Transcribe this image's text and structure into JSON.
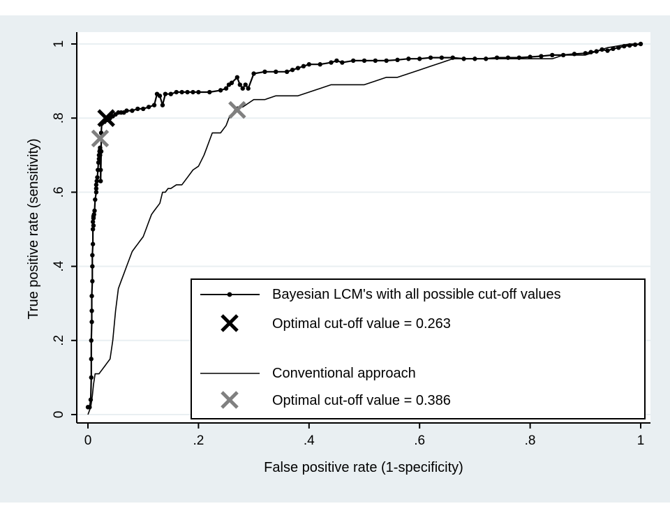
{
  "chart_data": {
    "type": "line",
    "xlabel": "False positive rate (1-specificity)",
    "ylabel": "True positive rate (sensitivity)",
    "xlim": [
      0,
      1
    ],
    "ylim": [
      0,
      1
    ],
    "xticks": [
      {
        "value": 0,
        "label": "0"
      },
      {
        "value": 0.2,
        "label": ".2"
      },
      {
        "value": 0.4,
        "label": ".4"
      },
      {
        "value": 0.6,
        "label": ".6"
      },
      {
        "value": 0.8,
        "label": ".8"
      },
      {
        "value": 1,
        "label": "1"
      }
    ],
    "yticks": [
      {
        "value": 0,
        "label": "0"
      },
      {
        "value": 0.2,
        "label": ".2"
      },
      {
        "value": 0.4,
        "label": ".4"
      },
      {
        "value": 0.6,
        "label": ".6"
      },
      {
        "value": 0.8,
        "label": ".8"
      },
      {
        "value": 1,
        "label": "1"
      }
    ],
    "grid": true,
    "legend_position": "bottom-right",
    "colors": {
      "background": "#e9eff2",
      "plot": "#ffffff",
      "grid": "#e9eff2",
      "bayesian": "#000000",
      "conventional": "#000000",
      "optimal_bayesian": "#000000",
      "optimal_conventional": "#808080"
    },
    "series": [
      {
        "name": "Bayesian LCM's with all possible cut-off values",
        "style": "line-with-dots",
        "x": [
          0.0,
          0.003,
          0.005,
          0.006,
          0.006,
          0.006,
          0.007,
          0.007,
          0.007,
          0.008,
          0.008,
          0.008,
          0.009,
          0.009,
          0.009,
          0.01,
          0.01,
          0.01,
          0.011,
          0.012,
          0.013,
          0.015,
          0.015,
          0.015,
          0.016,
          0.017,
          0.018,
          0.019,
          0.02,
          0.02,
          0.021,
          0.022,
          0.022,
          0.022,
          0.023,
          0.023,
          0.024,
          0.024,
          0.025,
          0.03,
          0.035,
          0.04,
          0.045,
          0.05,
          0.055,
          0.06,
          0.065,
          0.07,
          0.08,
          0.09,
          0.1,
          0.11,
          0.12,
          0.125,
          0.13,
          0.135,
          0.14,
          0.15,
          0.16,
          0.17,
          0.18,
          0.19,
          0.2,
          0.22,
          0.24,
          0.25,
          0.255,
          0.26,
          0.27,
          0.275,
          0.28,
          0.285,
          0.29,
          0.3,
          0.32,
          0.34,
          0.36,
          0.37,
          0.38,
          0.39,
          0.4,
          0.42,
          0.44,
          0.45,
          0.46,
          0.48,
          0.5,
          0.52,
          0.54,
          0.56,
          0.58,
          0.6,
          0.62,
          0.64,
          0.66,
          0.68,
          0.7,
          0.72,
          0.74,
          0.76,
          0.78,
          0.8,
          0.82,
          0.84,
          0.86,
          0.88,
          0.9,
          0.91,
          0.92,
          0.93,
          0.94,
          0.95,
          0.96,
          0.97,
          0.98,
          0.99,
          1.0
        ],
        "y": [
          0.02,
          0.02,
          0.04,
          0.1,
          0.15,
          0.2,
          0.25,
          0.28,
          0.32,
          0.36,
          0.4,
          0.43,
          0.46,
          0.5,
          0.52,
          0.53,
          0.51,
          0.535,
          0.54,
          0.55,
          0.58,
          0.6,
          0.61,
          0.62,
          0.63,
          0.64,
          0.66,
          0.68,
          0.69,
          0.7,
          0.71,
          0.715,
          0.72,
          0.7,
          0.66,
          0.63,
          0.71,
          0.76,
          0.785,
          0.79,
          0.795,
          0.8,
          0.805,
          0.81,
          0.815,
          0.815,
          0.815,
          0.82,
          0.82,
          0.825,
          0.825,
          0.83,
          0.835,
          0.865,
          0.86,
          0.835,
          0.865,
          0.865,
          0.87,
          0.87,
          0.87,
          0.87,
          0.87,
          0.87,
          0.875,
          0.88,
          0.89,
          0.895,
          0.91,
          0.89,
          0.88,
          0.89,
          0.88,
          0.92,
          0.925,
          0.925,
          0.925,
          0.93,
          0.935,
          0.94,
          0.945,
          0.945,
          0.95,
          0.955,
          0.95,
          0.955,
          0.955,
          0.955,
          0.955,
          0.957,
          0.96,
          0.96,
          0.963,
          0.963,
          0.963,
          0.96,
          0.96,
          0.96,
          0.963,
          0.963,
          0.963,
          0.965,
          0.967,
          0.97,
          0.97,
          0.973,
          0.975,
          0.978,
          0.98,
          0.985,
          0.982,
          0.987,
          0.99,
          0.994,
          0.996,
          0.998,
          1.0
        ]
      },
      {
        "name": "Conventional approach",
        "style": "line",
        "x": [
          0.0,
          0.005,
          0.008,
          0.01,
          0.013,
          0.02,
          0.025,
          0.03,
          0.035,
          0.04,
          0.045,
          0.05,
          0.055,
          0.06,
          0.065,
          0.07,
          0.075,
          0.08,
          0.085,
          0.09,
          0.095,
          0.1,
          0.105,
          0.11,
          0.115,
          0.12,
          0.13,
          0.135,
          0.14,
          0.145,
          0.15,
          0.16,
          0.17,
          0.18,
          0.19,
          0.2,
          0.21,
          0.215,
          0.22,
          0.225,
          0.23,
          0.24,
          0.25,
          0.255,
          0.26,
          0.265,
          0.27,
          0.28,
          0.29,
          0.3,
          0.32,
          0.34,
          0.36,
          0.38,
          0.4,
          0.42,
          0.44,
          0.46,
          0.48,
          0.5,
          0.52,
          0.54,
          0.56,
          0.58,
          0.6,
          0.62,
          0.64,
          0.66,
          0.68,
          0.7,
          0.72,
          0.74,
          0.76,
          0.78,
          0.8,
          0.82,
          0.84,
          0.86,
          0.88,
          0.9,
          0.92,
          0.94,
          0.96,
          0.98,
          1.0
        ],
        "y": [
          0.0,
          0.02,
          0.05,
          0.08,
          0.11,
          0.11,
          0.12,
          0.13,
          0.14,
          0.15,
          0.2,
          0.28,
          0.34,
          0.36,
          0.38,
          0.4,
          0.42,
          0.44,
          0.45,
          0.46,
          0.47,
          0.48,
          0.5,
          0.52,
          0.54,
          0.55,
          0.57,
          0.6,
          0.6,
          0.61,
          0.61,
          0.62,
          0.62,
          0.64,
          0.66,
          0.67,
          0.7,
          0.72,
          0.74,
          0.76,
          0.76,
          0.76,
          0.78,
          0.8,
          0.81,
          0.82,
          0.83,
          0.83,
          0.84,
          0.85,
          0.85,
          0.86,
          0.86,
          0.86,
          0.87,
          0.88,
          0.89,
          0.89,
          0.89,
          0.89,
          0.9,
          0.91,
          0.91,
          0.92,
          0.93,
          0.94,
          0.95,
          0.96,
          0.96,
          0.96,
          0.96,
          0.96,
          0.96,
          0.96,
          0.96,
          0.96,
          0.96,
          0.97,
          0.97,
          0.97,
          0.98,
          0.99,
          0.995,
          1.0,
          1.0
        ]
      }
    ],
    "optimal_points": [
      {
        "name": "Optimal cut-off value = 0.263",
        "x": 0.033,
        "y": 0.8,
        "color": "#000000"
      },
      {
        "name": "Optimal cut-off value = 0.386",
        "x": 0.022,
        "y": 0.745,
        "color": "#808080"
      },
      {
        "name": "Optimal cut-off value = 0.386",
        "x": 0.27,
        "y": 0.822,
        "color": "#808080"
      }
    ],
    "legend": [
      {
        "label": "Bayesian LCM's with all possible cut-off values",
        "symbol": "line-dot"
      },
      {
        "label": "Optimal cut-off value = 0.263",
        "symbol": "cross-black"
      },
      {
        "label": "Conventional approach",
        "symbol": "line"
      },
      {
        "label": "Optimal cut-off value = 0.386",
        "symbol": "cross-gray"
      }
    ]
  }
}
